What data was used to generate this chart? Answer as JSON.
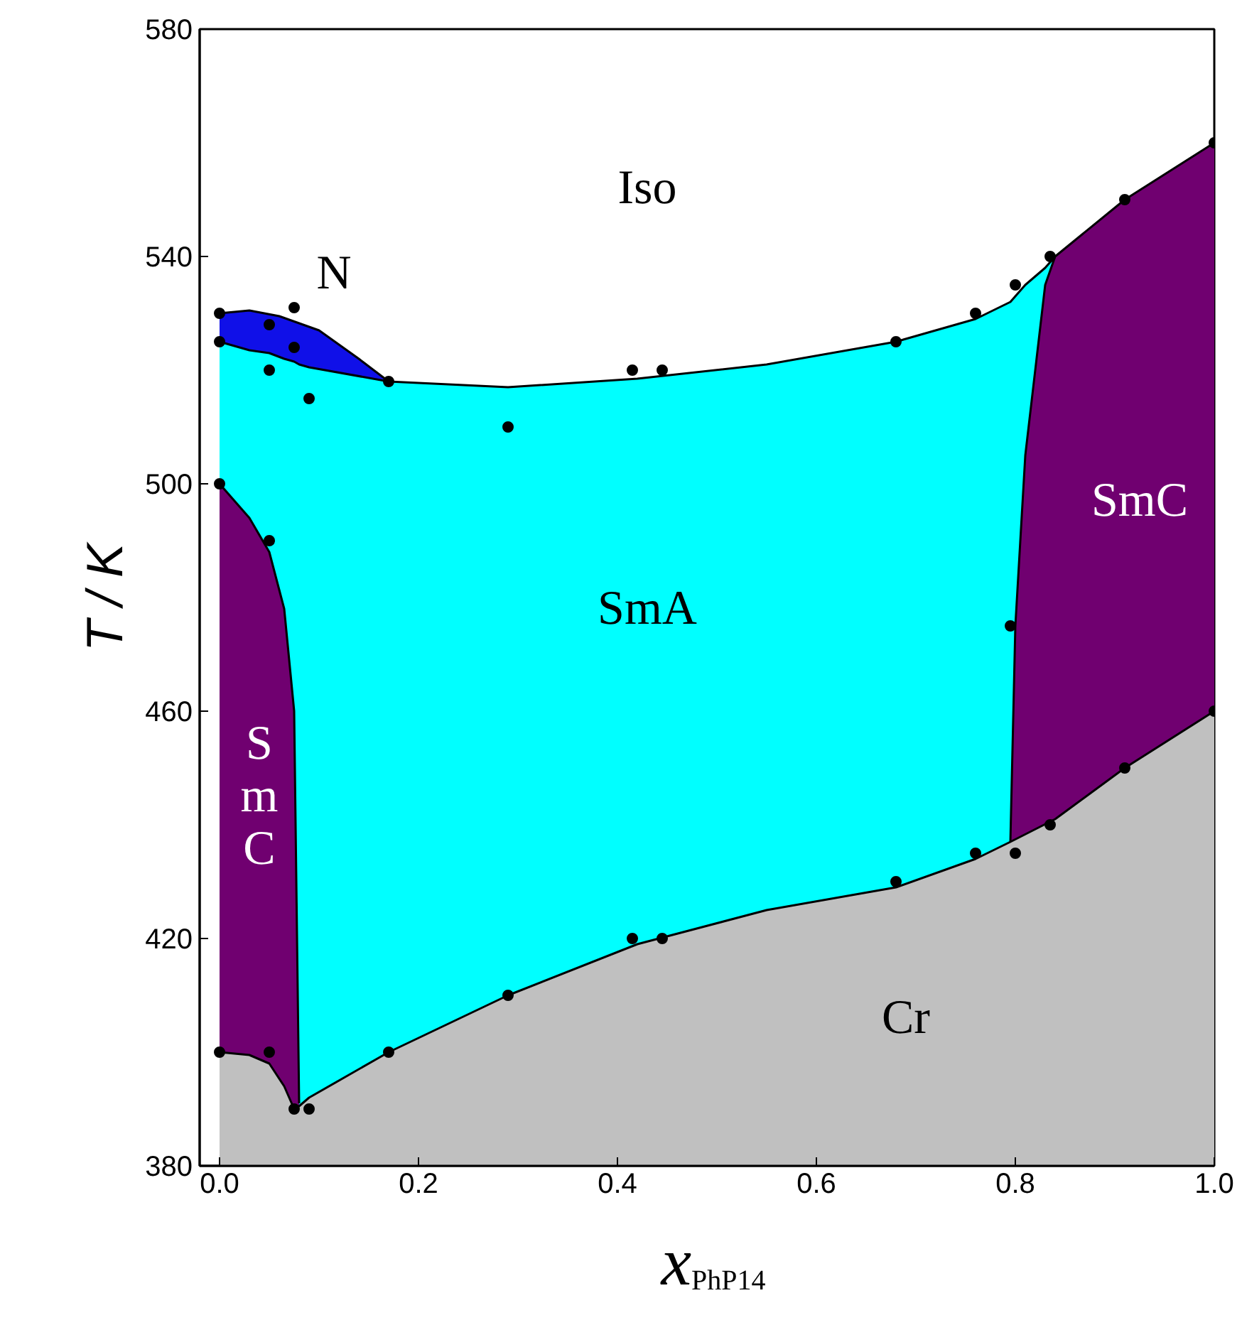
{
  "chart_data": {
    "type": "scatter",
    "xlabel": "x$_{PhP14}$",
    "ylabel": "T / K",
    "xlim": [
      -0.02,
      1.0
    ],
    "ylim": [
      380,
      580
    ],
    "xticks": [
      {
        "value": 0,
        "label": "0.0"
      },
      0.2,
      0.4,
      0.6,
      0.8,
      {
        "value": 1,
        "label": "1.0"
      }
    ],
    "yticks": [
      380,
      420,
      460,
      500,
      540,
      580
    ],
    "grid": false,
    "series": [
      {
        "type": "area",
        "color": "#1010e8",
        "x": [
          0,
          0.03,
          0.06,
          0.1,
          0.14,
          0.17
        ],
        "values": [
          530,
          530.5,
          529.5,
          527,
          522,
          518
        ]
      },
      {
        "type": "area",
        "color": "#00ffff",
        "x": [
          0,
          0.03,
          0.05,
          0.065,
          0.075,
          0.08,
          0.09,
          0.17,
          0.29,
          0.42,
          0.55,
          0.68,
          0.76,
          0.795,
          0.8,
          0.81,
          0.83,
          0.84
        ],
        "values": [
          525,
          523.5,
          523,
          522,
          521.5,
          521,
          520.5,
          518,
          517,
          518.5,
          521,
          525,
          529,
          532,
          533,
          535,
          538,
          540
        ]
      },
      {
        "type": "area",
        "color": "#700070",
        "x": [
          0,
          0.03,
          0.05,
          0.065,
          0.075,
          0.08
        ],
        "values": [
          500,
          494,
          488,
          478,
          460,
          391
        ]
      },
      {
        "type": "area",
        "color": "#700070",
        "x": [
          0.795,
          0.8,
          0.81,
          0.83,
          0.84,
          0.91,
          1.0
        ],
        "values": [
          437,
          475,
          505,
          535,
          540,
          550,
          560
        ]
      },
      {
        "type": "area",
        "color": "#c0c0c0",
        "x": [
          0,
          0.03,
          0.05,
          0.065,
          0.075,
          0.08,
          0.09,
          0.17,
          0.29,
          0.42,
          0.55,
          0.68,
          0.76,
          0.795,
          0.84,
          0.91,
          1.0
        ],
        "values": [
          400,
          399.5,
          398,
          394,
          390,
          390.5,
          392,
          400,
          410,
          419,
          425,
          429,
          434,
          437,
          441,
          450,
          460
        ]
      },
      {
        "color": "#000000",
        "marker": "circle",
        "x": [
          0,
          0,
          0,
          0,
          0.05,
          0.05,
          0.05,
          0.05,
          0.075,
          0.075,
          0.075,
          0.09,
          0.09,
          0.17,
          0.17,
          0.29,
          0.29,
          0.415,
          0.415,
          0.445,
          0.445,
          0.68,
          0.68,
          0.76,
          0.76,
          0.795,
          0.8,
          0.8,
          0.835,
          0.835,
          0.91,
          0.91,
          1.0,
          1.0
        ],
        "values": [
          530,
          525,
          500,
          400,
          528,
          520,
          490,
          400,
          531,
          524,
          390,
          515,
          390,
          518,
          400,
          510,
          410,
          520,
          420,
          520,
          420,
          525,
          430,
          530,
          435,
          475,
          535,
          435,
          540,
          440,
          550,
          450,
          560,
          460
        ]
      }
    ],
    "annotations": [
      "Iso",
      "N",
      "SmA",
      "SmC",
      "S\nm\nC",
      "Cr"
    ]
  }
}
